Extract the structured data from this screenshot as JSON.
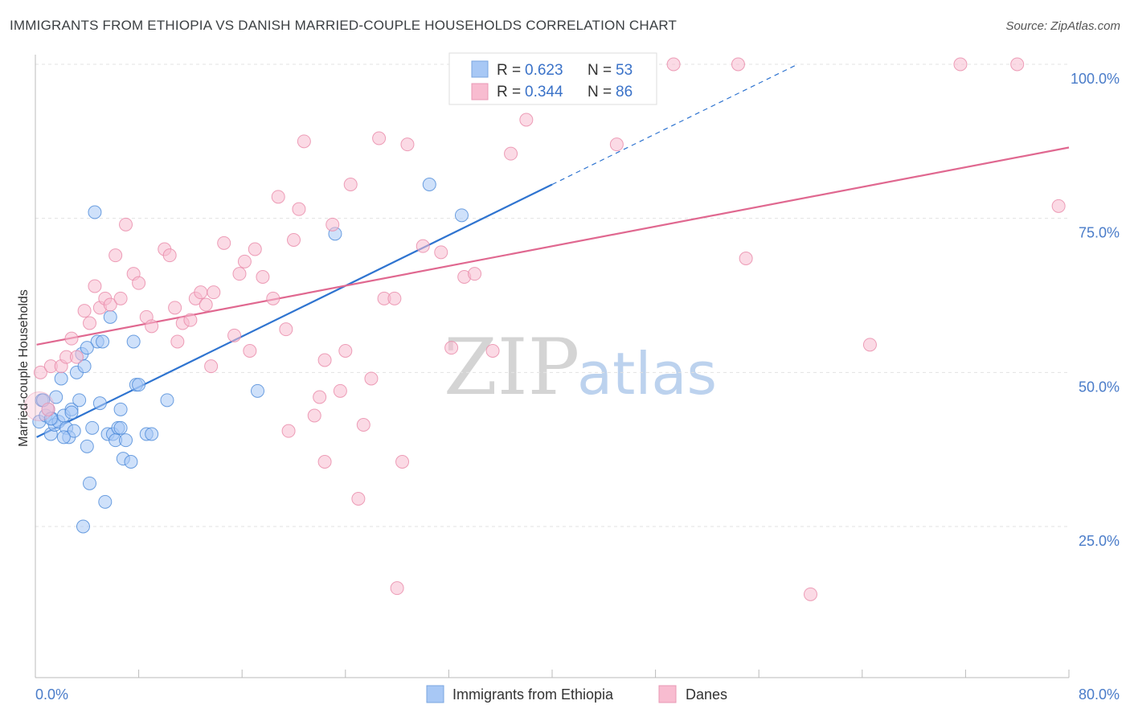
{
  "header": {
    "title": "IMMIGRANTS FROM ETHIOPIA VS DANISH MARRIED-COUPLE HOUSEHOLDS CORRELATION CHART",
    "source": "Source: ZipAtlas.com"
  },
  "watermark": {
    "zip": "ZIP",
    "atlas": "atlas"
  },
  "legend_top": {
    "r_label": "R =",
    "n_label": "N =",
    "rows": [
      {
        "r": "0.623",
        "n": "53",
        "color": "#a8c8f5"
      },
      {
        "r": "0.344",
        "n": "86",
        "color": "#f8bcd0"
      }
    ]
  },
  "chart_data": {
    "type": "scatter",
    "title": "IMMIGRANTS FROM ETHIOPIA VS DANISH MARRIED-COUPLE HOUSEHOLDS CORRELATION CHART",
    "xlabel": "",
    "ylabel": "Married-couple Households",
    "xlim": [
      0,
      80
    ],
    "ylim": [
      0,
      105
    ],
    "x_tick_labels": [
      "0.0%",
      "80.0%"
    ],
    "y_tick_values": [
      25,
      50,
      75,
      100
    ],
    "y_tick_labels": [
      "25.0%",
      "50.0%",
      "75.0%",
      "100.0%"
    ],
    "grid": true,
    "legend_position": "bottom-center",
    "series": [
      {
        "name": "Immigrants from Ethiopia",
        "color": "#4a88d8",
        "fill": "#a8c8f5",
        "line_color": "#2f74d0",
        "trend": {
          "x0": 0.1,
          "y0": 39.5,
          "x1": 40,
          "y1": 80.5,
          "dashed_to_x": 59,
          "dashed_to_y": 100
        },
        "points": [
          [
            0.3,
            42
          ],
          [
            0.5,
            45.5
          ],
          [
            0.8,
            43
          ],
          [
            1.0,
            44
          ],
          [
            1.2,
            40
          ],
          [
            1.3,
            42.5
          ],
          [
            1.5,
            41.5
          ],
          [
            1.6,
            46
          ],
          [
            1.8,
            42
          ],
          [
            2.0,
            49
          ],
          [
            2.2,
            43
          ],
          [
            2.4,
            41
          ],
          [
            2.6,
            39.5
          ],
          [
            2.8,
            44
          ],
          [
            3.0,
            40.5
          ],
          [
            3.2,
            50
          ],
          [
            3.4,
            45.5
          ],
          [
            3.6,
            53
          ],
          [
            3.8,
            51
          ],
          [
            4.0,
            38
          ],
          [
            4.2,
            32
          ],
          [
            4.4,
            41
          ],
          [
            4.6,
            76
          ],
          [
            4.8,
            55
          ],
          [
            5.0,
            45
          ],
          [
            5.2,
            55
          ],
          [
            5.4,
            29
          ],
          [
            5.6,
            40
          ],
          [
            5.8,
            59
          ],
          [
            6.0,
            40
          ],
          [
            6.2,
            39
          ],
          [
            6.4,
            41
          ],
          [
            6.6,
            44
          ],
          [
            6.8,
            36
          ],
          [
            7.0,
            39
          ],
          [
            7.4,
            35.5
          ],
          [
            7.6,
            55
          ],
          [
            7.8,
            48
          ],
          [
            8.0,
            48
          ],
          [
            8.6,
            40
          ],
          [
            9.0,
            40
          ],
          [
            10.2,
            45.5
          ],
          [
            17.2,
            47
          ],
          [
            23.2,
            72.5
          ],
          [
            30.5,
            80.5
          ],
          [
            33.0,
            75.5
          ],
          [
            3.7,
            25
          ],
          [
            2.8,
            43.5
          ],
          [
            1.2,
            42.5
          ],
          [
            0.6,
            45.5
          ],
          [
            4.0,
            54
          ],
          [
            6.6,
            41
          ],
          [
            2.2,
            39.5
          ]
        ]
      },
      {
        "name": "Danes",
        "color": "#e888a8",
        "fill": "#f8bcd0",
        "line_color": "#e06890",
        "trend": {
          "x0": 0.1,
          "y0": 54.5,
          "x1": 80,
          "y1": 86.5
        },
        "points": [
          [
            0.4,
            50
          ],
          [
            1.0,
            44
          ],
          [
            1.2,
            51
          ],
          [
            2.0,
            51
          ],
          [
            2.4,
            52.5
          ],
          [
            2.8,
            55.5
          ],
          [
            3.2,
            52.5
          ],
          [
            3.8,
            60
          ],
          [
            4.2,
            58
          ],
          [
            4.6,
            64
          ],
          [
            5.0,
            60.5
          ],
          [
            5.4,
            62
          ],
          [
            5.8,
            61
          ],
          [
            6.2,
            69
          ],
          [
            6.6,
            62
          ],
          [
            7.0,
            74
          ],
          [
            7.6,
            66
          ],
          [
            8.0,
            64.5
          ],
          [
            8.6,
            59
          ],
          [
            9.0,
            57.5
          ],
          [
            10.0,
            70
          ],
          [
            10.4,
            69
          ],
          [
            10.8,
            60.5
          ],
          [
            11.0,
            55
          ],
          [
            11.4,
            58
          ],
          [
            12.0,
            58.5
          ],
          [
            12.4,
            62
          ],
          [
            12.8,
            63
          ],
          [
            13.2,
            61
          ],
          [
            13.8,
            63
          ],
          [
            14.6,
            71
          ],
          [
            15.4,
            56
          ],
          [
            15.8,
            66
          ],
          [
            16.2,
            68
          ],
          [
            16.6,
            53.5
          ],
          [
            17.0,
            70
          ],
          [
            17.6,
            65.5
          ],
          [
            18.4,
            62
          ],
          [
            18.8,
            78.5
          ],
          [
            19.4,
            57
          ],
          [
            20.0,
            71.5
          ],
          [
            20.4,
            76.5
          ],
          [
            20.8,
            87.5
          ],
          [
            21.6,
            43
          ],
          [
            22.0,
            46
          ],
          [
            22.4,
            52
          ],
          [
            23.0,
            74
          ],
          [
            23.6,
            47
          ],
          [
            24.0,
            53.5
          ],
          [
            24.4,
            80.5
          ],
          [
            25.0,
            29.5
          ],
          [
            25.4,
            41.5
          ],
          [
            26.0,
            49
          ],
          [
            26.6,
            88
          ],
          [
            27.0,
            62
          ],
          [
            27.8,
            62
          ],
          [
            28.4,
            35.5
          ],
          [
            28.8,
            87
          ],
          [
            30.0,
            70.5
          ],
          [
            31.4,
            69.5
          ],
          [
            32.2,
            54
          ],
          [
            33.2,
            65.5
          ],
          [
            34.0,
            66
          ],
          [
            34.8,
            96
          ],
          [
            35.4,
            53.5
          ],
          [
            36.0,
            100
          ],
          [
            36.8,
            85.5
          ],
          [
            38.0,
            91
          ],
          [
            38.8,
            100
          ],
          [
            40.0,
            100
          ],
          [
            42.0,
            100
          ],
          [
            45.0,
            87
          ],
          [
            46.4,
            100
          ],
          [
            49.4,
            100
          ],
          [
            54.4,
            100
          ],
          [
            55.0,
            68.5
          ],
          [
            60.0,
            14
          ],
          [
            64.6,
            54.5
          ],
          [
            71.6,
            100
          ],
          [
            76.0,
            100
          ],
          [
            79.2,
            77
          ],
          [
            33.6,
            96
          ],
          [
            19.6,
            40.5
          ],
          [
            28.0,
            15
          ],
          [
            13.6,
            51
          ],
          [
            22.4,
            35.5
          ]
        ]
      }
    ]
  }
}
